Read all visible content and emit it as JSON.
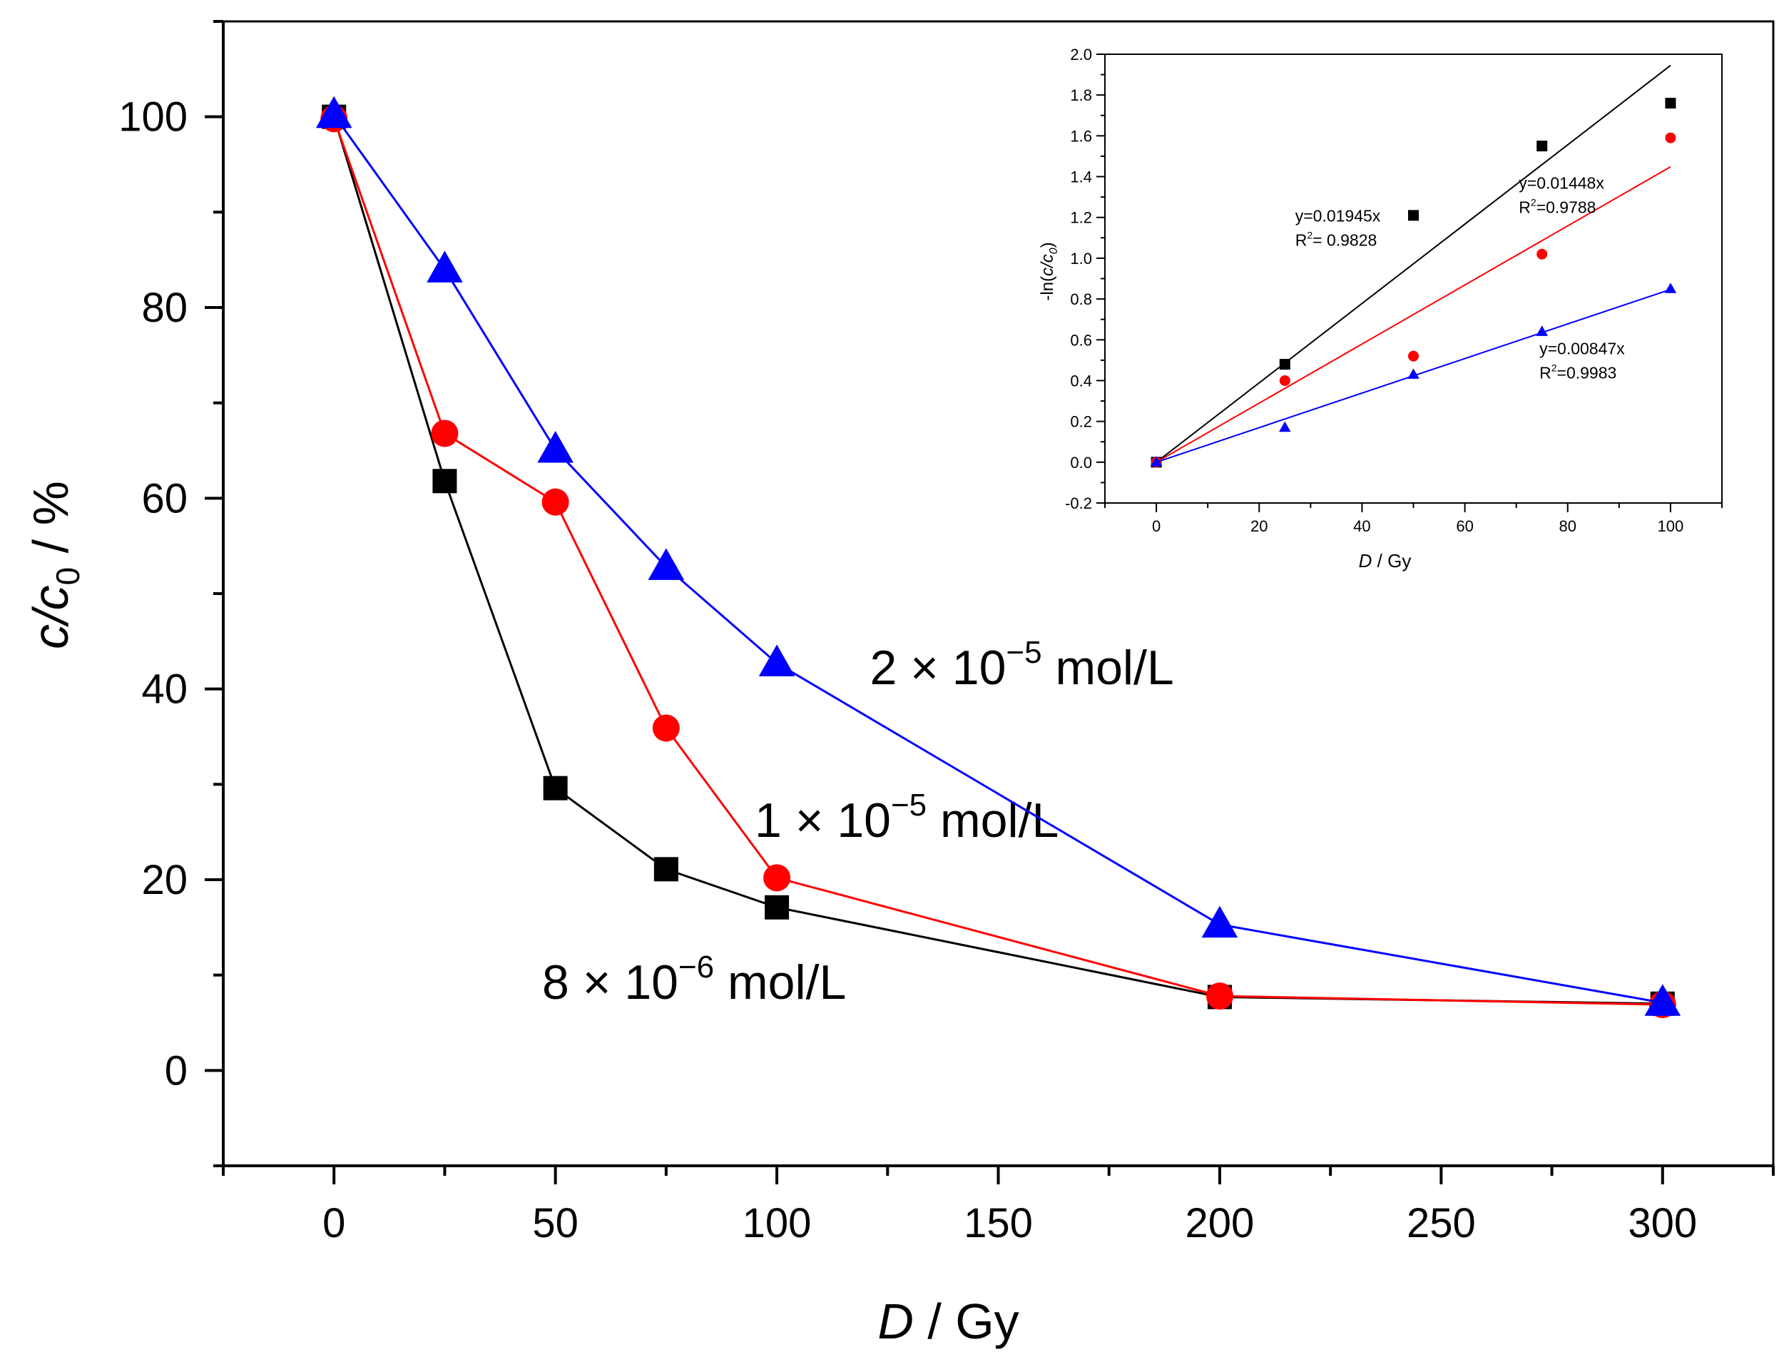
{
  "chart_data": [
    {
      "type": "line",
      "id": "main",
      "xlabel_var": "D",
      "xlabel_unit": " / Gy",
      "ylabel_var": "c/c",
      "ylabel_sub": "0",
      "ylabel_unit": " / %",
      "xlim": [
        -25,
        325
      ],
      "ylim": [
        -10,
        110
      ],
      "xticks": [
        0,
        50,
        100,
        150,
        200,
        250,
        300
      ],
      "yticks": [
        0,
        20,
        40,
        60,
        80,
        100
      ],
      "x_minor_step": 25,
      "y_minor_step": 10,
      "series": [
        {
          "name": "8 × 10−6 mol/L",
          "marker": "square",
          "color": "#000000",
          "x": [
            0,
            25,
            50,
            75,
            100,
            200,
            300
          ],
          "y": [
            100,
            61.8,
            29.6,
            21.1,
            17.1,
            7.7,
            7.0
          ],
          "annotation": {
            "prefix": "8 × 10",
            "exp": "−6",
            "suffix": " mol/L",
            "x": 47,
            "y": 7.5
          }
        },
        {
          "name": "1 × 10−5 mol/L",
          "marker": "circle",
          "color": "#ff0000",
          "x": [
            0,
            25,
            50,
            75,
            100,
            200,
            300
          ],
          "y": [
            99.8,
            66.8,
            59.6,
            35.9,
            20.2,
            7.8,
            6.9
          ],
          "annotation": {
            "prefix": "1 × 10",
            "exp": "−5",
            "suffix": " mol/L",
            "x": 95,
            "y": 24.5
          }
        },
        {
          "name": "2 × 10−5 mol/L",
          "marker": "triangle",
          "color": "#0000ff",
          "x": [
            0,
            25,
            50,
            75,
            100,
            200,
            300
          ],
          "y": [
            100.2,
            84.0,
            65.1,
            52.8,
            42.7,
            15.3,
            7.1
          ],
          "annotation": {
            "prefix": "2 × 10",
            "exp": "−5",
            "suffix": " mol/L",
            "x": 121,
            "y": 40.5
          }
        }
      ]
    },
    {
      "type": "scatter",
      "id": "inset",
      "xlabel_var": "D",
      "xlabel_unit": " / Gy",
      "ylabel_prefix": "-ln(",
      "ylabel_var": "c/c",
      "ylabel_sub": "0",
      "ylabel_suffix": ")",
      "xlim": [
        -10,
        110
      ],
      "ylim": [
        -0.2,
        2.0
      ],
      "xticks": [
        0,
        20,
        40,
        60,
        80,
        100
      ],
      "yticks": [
        -0.2,
        0.0,
        0.2,
        0.4,
        0.6,
        0.8,
        1.0,
        1.2,
        1.4,
        1.6,
        1.8,
        2.0
      ],
      "ytick_labels": [
        "-0.2",
        "0.0",
        "0.2",
        "0.4",
        "0.6",
        "0.8",
        "1.0",
        "1.2",
        "1.4",
        "1.6",
        "1.8",
        "2.0"
      ],
      "x_minor_step": 10,
      "series": [
        {
          "marker": "square",
          "color": "#000000",
          "x": [
            0,
            25,
            50,
            75,
            100
          ],
          "y": [
            0.0,
            0.48,
            1.21,
            1.55,
            1.76
          ],
          "fit_slope": 0.01945,
          "fit_x": [
            0,
            100
          ],
          "equation": "y=0.01945x",
          "r2_label": "R",
          "r2_value": "= 0.9828",
          "label_pos": {
            "x": 27,
            "y": 1.18
          }
        },
        {
          "marker": "circle",
          "color": "#ff0000",
          "x": [
            0,
            25,
            50,
            75,
            100
          ],
          "y": [
            0.0,
            0.4,
            0.52,
            1.02,
            1.59
          ],
          "fit_slope": 0.01448,
          "fit_x": [
            0,
            100
          ],
          "equation": "y=0.01448x",
          "r2_label": "R",
          "r2_value": "=0.9788",
          "label_pos": {
            "x": 70.5,
            "y": 1.34
          }
        },
        {
          "marker": "triangle",
          "color": "#0000ff",
          "x": [
            0,
            25,
            50,
            75,
            100
          ],
          "y": [
            0.0,
            0.17,
            0.43,
            0.64,
            0.85
          ],
          "fit_slope": 0.00847,
          "fit_x": [
            0,
            100
          ],
          "equation": "y=0.00847x",
          "r2_label": "R",
          "r2_value": "=0.9983",
          "label_pos": {
            "x": 74.5,
            "y": 0.53
          }
        }
      ]
    }
  ]
}
